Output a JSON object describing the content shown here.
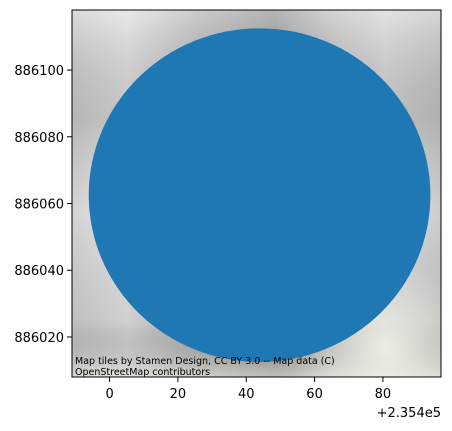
{
  "chart_data": {
    "type": "scatter",
    "title": "",
    "xlabel": "",
    "ylabel": "",
    "x_offset_label": "+2.354e5",
    "xlim": [
      -11,
      97
    ],
    "ylim": [
      886008,
      886118
    ],
    "x_ticks": [
      0,
      20,
      40,
      60,
      80
    ],
    "x_tick_labels": [
      "0",
      "20",
      "40",
      "60",
      "80"
    ],
    "y_ticks": [
      886020,
      886040,
      886060,
      886080,
      886100
    ],
    "y_tick_labels": [
      "886020",
      "886040",
      "886060",
      "886080",
      "886100"
    ],
    "grid": false,
    "background": "map tiles (grayscale)",
    "series": [
      {
        "shape": "circle",
        "center": [
          43.9,
          886062.5
        ],
        "radius": 50,
        "color": "#1f77b4"
      }
    ],
    "attribution_lines": [
      "Map tiles by Stamen Design, CC BY 3.0 -- Map data (C)",
      "OpenStreetMap contributors"
    ]
  }
}
